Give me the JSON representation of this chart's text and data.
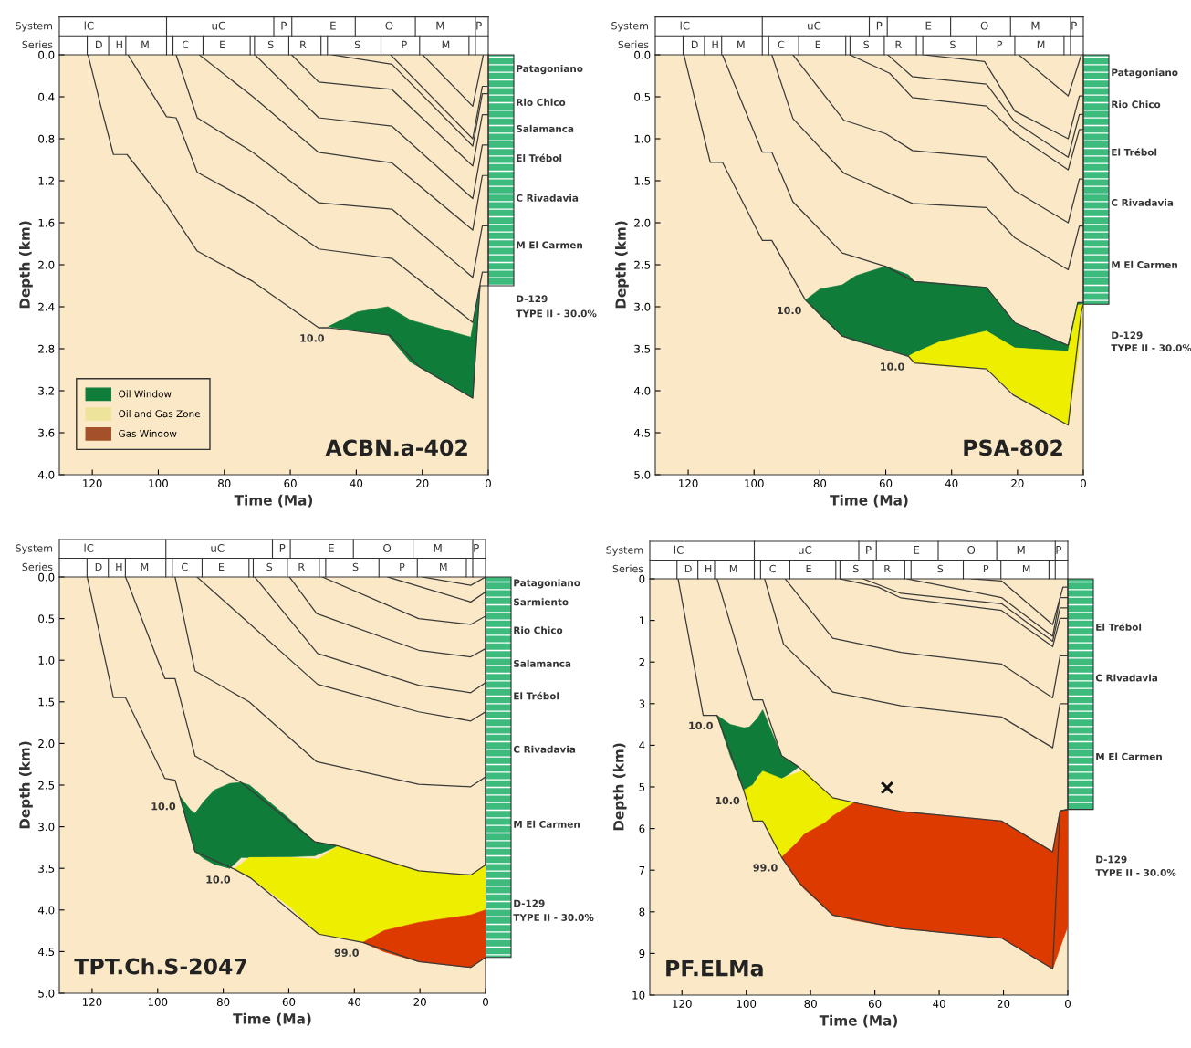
{
  "chart_data": [
    {
      "type": "line",
      "title": "ACBN.a-402",
      "xlabel": "Time (Ma)",
      "ylabel": "Depth (km)",
      "xlim": [
        130,
        0
      ],
      "xticks": [
        120,
        100,
        80,
        60,
        40,
        20,
        0
      ],
      "ylim": [
        4.0,
        0.0
      ],
      "yticks": [
        {
          "value": 0,
          "label": "0.0"
        },
        {
          "value": 0.4,
          "label": "0.4"
        },
        {
          "value": 0.8,
          "label": "0.8"
        },
        {
          "value": 1.2,
          "label": "1.2"
        },
        {
          "value": 1.6,
          "label": "1.6"
        },
        {
          "value": 2.0,
          "label": "2.0"
        },
        {
          "value": 2.4,
          "label": "2.4"
        },
        {
          "value": 2.8,
          "label": "2.8"
        },
        {
          "value": 3.2,
          "label": "3.2"
        },
        {
          "value": 3.6,
          "label": "3.6"
        },
        {
          "value": 4.0,
          "label": "4.0"
        }
      ],
      "grid": false,
      "legend": "bottom left",
      "marker": "none",
      "line_style": "solid",
      "series": [
        {
          "type": "area",
          "name": "Oil Window",
          "color": "#0f7c3a",
          "x": [
            48.5,
            39.7,
            30.4,
            23.4,
            5.3,
            2.5,
            4.7,
            23.4,
            30.4,
            39.7
          ],
          "values": [
            2.59,
            2.45,
            2.4,
            2.53,
            2.69,
            2.2,
            3.27,
            2.93,
            2.67,
            2.63
          ]
        },
        {
          "type": "area",
          "name": "Oil and Gas Zone",
          "color": "#ede39b"
        },
        {
          "type": "area",
          "name": "Gas Window",
          "color": "#a4512b"
        },
        {
          "color": "#3a3a3a",
          "x": [
            121.3,
            117.5,
            113.6,
            109.5,
            97.5,
            88.2,
            71.3,
            51.4,
            48.5,
            29.8,
            21,
            4.7,
            2.5,
            0
          ],
          "values": [
            0,
            0.48,
            0.95,
            0.95,
            1.43,
            1.87,
            2.16,
            2.6,
            2.6,
            2.67,
            2.97,
            3.27,
            2.2,
            2.2
          ]
        },
        {
          "color": "#3a3a3a",
          "x": [
            109.2,
            97.5,
            94.6,
            88.2,
            71.3,
            51.4,
            29.2,
            4.7,
            1.8,
            0
          ],
          "values": [
            0,
            0.59,
            0.6,
            1.12,
            1.41,
            1.85,
            1.94,
            2.55,
            2.07,
            2.07
          ]
        },
        {
          "color": "#3a3a3a",
          "x": [
            94.6,
            88.2,
            71.3,
            51.4,
            29.2,
            4.7,
            1.8,
            0
          ],
          "values": [
            0,
            0.6,
            0.93,
            1.41,
            1.47,
            2.12,
            1.63,
            1.63
          ]
        },
        {
          "color": "#3a3a3a",
          "x": [
            87.6,
            71.3,
            51.4,
            29.2,
            4.7,
            1.8,
            0
          ],
          "values": [
            0,
            0.4,
            0.93,
            1.03,
            1.67,
            1.15,
            1.15
          ]
        },
        {
          "color": "#3a3a3a",
          "x": [
            70.7,
            51.4,
            29.2,
            4.7,
            1.8,
            0
          ],
          "values": [
            0,
            0.6,
            0.68,
            1.37,
            0.86,
            0.86
          ]
        },
        {
          "color": "#3a3a3a",
          "x": [
            59.6,
            51.4,
            29.2,
            4.7,
            1.8,
            0
          ],
          "values": [
            0,
            0.26,
            0.33,
            1.06,
            0.57,
            0.57
          ]
        },
        {
          "color": "#3a3a3a",
          "x": [
            47.3,
            29.2,
            4.7,
            1.8,
            0
          ],
          "values": [
            0,
            0.09,
            0.87,
            0.37,
            0.37
          ]
        },
        {
          "color": "#3a3a3a",
          "x": [
            29.6,
            4.7,
            1.8,
            0
          ],
          "values": [
            0,
            0.8,
            0.3,
            0.3
          ]
        },
        {
          "color": "#3a3a3a",
          "x": [
            19.9,
            4.7,
            1.5
          ],
          "values": [
            0,
            0.49,
            0
          ]
        }
      ],
      "annotations": [
        "System",
        "Series",
        "lC",
        "uC",
        "P",
        "E",
        "O",
        "M",
        "P",
        "D",
        "H",
        "M",
        "C",
        "E",
        "S",
        "R",
        "S",
        "P",
        "M",
        "Patagoniano",
        "Rio Chico",
        "Salamanca",
        "El Trébol",
        "C Rivadavia",
        "M El Carmen",
        "D-129",
        "TYPE II - 30.0%",
        {
          "text": "10.0",
          "x": 48.5,
          "y": 2.6
        }
      ]
    },
    {
      "type": "line",
      "title": "PSA-802",
      "xlabel": "Time (Ma)",
      "ylabel": "Depth (km)",
      "xlim": [
        130,
        0
      ],
      "xticks": [
        120,
        100,
        80,
        60,
        40,
        20,
        0
      ],
      "ylim": [
        5.0,
        0.0
      ],
      "yticks": [
        {
          "value": 0,
          "label": "0.0"
        },
        {
          "value": 0.5,
          "label": "0.5"
        },
        {
          "value": 1.0,
          "label": "1.0"
        },
        {
          "value": 1.5,
          "label": "1.5"
        },
        {
          "value": 2.0,
          "label": "2.0"
        },
        {
          "value": 2.5,
          "label": "2.5"
        },
        {
          "value": 3.0,
          "label": "3.0"
        },
        {
          "value": 3.5,
          "label": "3.5"
        },
        {
          "value": 4.0,
          "label": "4.0"
        },
        {
          "value": 4.5,
          "label": "4.5"
        },
        {
          "value": 5.0,
          "label": "5.0"
        }
      ],
      "grid": false,
      "marker": "none",
      "line_style": "solid",
      "series": [
        {
          "type": "area",
          "color": "#0f7c3a",
          "x": [
            84.4,
            80,
            73.2,
            69,
            60,
            53.1,
            51.3,
            43.8,
            29.4,
            20.8,
            4.6,
            1.7,
            0,
            0,
            1.7,
            4.6,
            20.8,
            29.4,
            43.8,
            51.3,
            53.1,
            60,
            69,
            73.2,
            80
          ],
          "values": [
            2.92,
            2.79,
            2.74,
            2.63,
            2.52,
            2.62,
            2.7,
            2.72,
            2.77,
            3.19,
            3.46,
            2.95,
            2.95,
            2.97,
            2.98,
            3.53,
            3.49,
            3.29,
            3.42,
            3.55,
            3.59,
            3.5,
            3.41,
            3.35,
            3.1
          ]
        },
        {
          "type": "area",
          "color": "#eeee00",
          "x": [
            53.1,
            51.3,
            43.8,
            29.4,
            20.8,
            4.6,
            1.7,
            0,
            1.7,
            4.6,
            20.8,
            29.4,
            43.8,
            51.3
          ],
          "values": [
            3.59,
            3.55,
            3.42,
            3.29,
            3.49,
            3.53,
            2.98,
            2.97,
            3.6,
            4.41,
            4.05,
            3.74,
            3.7,
            3.67
          ]
        },
        {
          "color": "#3a3a3a",
          "x": [
            121.3,
            113.3,
            109.6,
            97.5,
            94.6,
            84.4,
            73.2,
            53.1,
            51.3,
            29.4,
            21.3,
            4.6,
            0.6,
            0
          ],
          "values": [
            0,
            1.28,
            1.28,
            2.21,
            2.21,
            2.92,
            3.35,
            3.59,
            3.67,
            3.74,
            4.05,
            4.41,
            3.06,
            2.97
          ]
        },
        {
          "color": "#3a3a3a",
          "x": [
            109.6,
            97.5,
            94.6,
            88.2,
            73.2,
            60,
            51.3,
            29.4,
            20.8,
            4.6,
            1.7,
            0
          ],
          "values": [
            0,
            1.16,
            1.16,
            1.75,
            2.36,
            2.52,
            2.7,
            2.77,
            3.19,
            3.46,
            2.95,
            2.95
          ]
        },
        {
          "color": "#3a3a3a",
          "x": [
            94.6,
            88.2,
            72.7,
            51.9,
            29.4,
            20.8,
            4.6,
            1.2,
            0
          ],
          "values": [
            0,
            0.76,
            1.41,
            1.77,
            1.82,
            2.18,
            2.56,
            2.04,
            2.04
          ]
        },
        {
          "color": "#3a3a3a",
          "x": [
            88.2,
            72.7,
            60,
            51.9,
            29.4,
            20.8,
            4.6,
            1.2,
            0
          ],
          "values": [
            0,
            0.78,
            0.94,
            1.14,
            1.22,
            1.62,
            2.0,
            1.48,
            1.48
          ]
        },
        {
          "color": "#3a3a3a",
          "x": [
            70.9,
            58.8,
            51.9,
            29.4,
            20.8,
            4.6,
            1.2,
            0
          ],
          "values": [
            0,
            0.22,
            0.51,
            0.61,
            0.94,
            1.37,
            0.89,
            0.89
          ]
        },
        {
          "color": "#3a3a3a",
          "x": [
            59.4,
            51.9,
            29.4,
            20.8,
            4.6,
            1.2,
            0
          ],
          "values": [
            0,
            0.26,
            0.35,
            0.8,
            1.22,
            0.71,
            0.71
          ]
        },
        {
          "color": "#3a3a3a",
          "x": [
            48.4,
            30,
            20.8,
            4.6,
            1.2,
            0
          ],
          "values": [
            0,
            0.08,
            0.67,
            1.0,
            0.49,
            0.49
          ]
        },
        {
          "color": "#3a3a3a",
          "x": [
            19.6,
            4.6,
            0.6
          ],
          "values": [
            0,
            0.49,
            0
          ]
        }
      ],
      "annotations": [
        "System",
        "Series",
        "lC",
        "uC",
        "P",
        "E",
        "O",
        "M",
        "P",
        "D",
        "H",
        "M",
        "C",
        "E",
        "S",
        "R",
        "S",
        "P",
        "M",
        "Patagoniano",
        "Rio Chico",
        "El Trébol",
        "C Rivadavia",
        "M El Carmen",
        "D-129",
        "TYPE II - 30.0%",
        {
          "text": "10.0",
          "x": 84.4,
          "y": 2.92
        },
        {
          "text": "10.0",
          "x": 53.1,
          "y": 3.59
        }
      ]
    },
    {
      "type": "line",
      "title": "TPT.Ch.S-2047",
      "xlabel": "Time (Ma)",
      "ylabel": "Depth (km)",
      "xlim": [
        130,
        0
      ],
      "xticks": [
        120,
        100,
        80,
        60,
        40,
        20,
        0
      ],
      "ylim": [
        5.0,
        0.0
      ],
      "yticks": [
        {
          "value": 0,
          "label": "0.0"
        },
        {
          "value": 0.5,
          "label": "0.5"
        },
        {
          "value": 1.0,
          "label": "1.0"
        },
        {
          "value": 1.5,
          "label": "1.5"
        },
        {
          "value": 2.0,
          "label": "2.0"
        },
        {
          "value": 2.5,
          "label": "2.5"
        },
        {
          "value": 3.0,
          "label": "3.0"
        },
        {
          "value": 3.5,
          "label": "3.5"
        },
        {
          "value": 4.0,
          "label": "4.0"
        },
        {
          "value": 4.5,
          "label": "4.5"
        },
        {
          "value": 5.0,
          "label": "5.0"
        }
      ],
      "grid": false,
      "marker": "none",
      "line_style": "solid",
      "series": [
        {
          "type": "area",
          "color": "#0f7c3a",
          "x": [
            93.3,
            90,
            88.6,
            86,
            82.7,
            78,
            74.5,
            72,
            60,
            52.1,
            45,
            52.1,
            60,
            72,
            74.5,
            78,
            82.7,
            86,
            88.6,
            90
          ],
          "values": [
            2.63,
            2.8,
            2.84,
            2.7,
            2.56,
            2.48,
            2.47,
            2.5,
            2.9,
            3.18,
            3.23,
            3.35,
            3.36,
            3.37,
            3.37,
            3.5,
            3.45,
            3.38,
            3.3,
            3.1
          ]
        },
        {
          "type": "area",
          "color": "#eeee00",
          "x": [
            76.6,
            72.1,
            71.5,
            60,
            51,
            45,
            37.4,
            31,
            20.4,
            4.5,
            0,
            0,
            4.5,
            20.4,
            31,
            37.4,
            45,
            51,
            60,
            71.5,
            72.1
          ],
          "values": [
            3.51,
            3.37,
            3.37,
            3.37,
            3.39,
            3.23,
            3.33,
            3.4,
            3.53,
            3.58,
            3.46,
            4.0,
            4.06,
            4.15,
            4.25,
            4.39,
            4.33,
            4.29,
            3.95,
            3.62,
            3.6
          ]
        },
        {
          "type": "area",
          "color": "#dd3a00",
          "x": [
            37.4,
            31,
            20.4,
            4.5,
            0,
            0,
            4.5,
            20.4,
            31
          ],
          "values": [
            4.39,
            4.25,
            4.15,
            4.06,
            4.0,
            4.57,
            4.69,
            4.62,
            4.5
          ]
        },
        {
          "color": "#3a3a3a",
          "x": [
            121.5,
            113.5,
            109.8,
            97.8,
            94.7,
            93.3,
            88.6,
            76.6,
            71.5,
            50.9,
            37.4,
            20.4,
            4.5,
            0
          ],
          "values": [
            0,
            1.45,
            1.45,
            2.42,
            2.44,
            2.63,
            3.3,
            3.51,
            3.62,
            4.29,
            4.39,
            4.62,
            4.69,
            4.57
          ]
        },
        {
          "color": "#3a3a3a",
          "x": [
            109.8,
            97.8,
            94.7,
            88.6,
            74.5,
            52.1,
            45,
            20.4,
            4.5,
            0
          ],
          "values": [
            0,
            1.22,
            1.22,
            2.15,
            2.47,
            3.18,
            3.23,
            3.53,
            3.58,
            3.46
          ]
        },
        {
          "color": "#3a3a3a",
          "x": [
            94.7,
            88.6,
            72.1,
            51.5,
            20.4,
            4.5,
            0
          ],
          "values": [
            0,
            1.13,
            1.5,
            2.22,
            2.49,
            2.52,
            2.4
          ]
        },
        {
          "color": "#3a3a3a",
          "x": [
            88,
            51.2,
            20.4,
            4.5,
            0
          ],
          "values": [
            0,
            1.29,
            1.62,
            1.73,
            1.62
          ]
        },
        {
          "color": "#3a3a3a",
          "x": [
            70.4,
            51.2,
            20.4,
            4.5,
            0
          ],
          "values": [
            0,
            0.92,
            1.3,
            1.39,
            1.27
          ]
        },
        {
          "color": "#3a3a3a",
          "x": [
            59.8,
            51.5,
            20.4,
            4.5,
            0
          ],
          "values": [
            0,
            0.44,
            0.88,
            0.96,
            0.86
          ]
        },
        {
          "color": "#3a3a3a",
          "x": [
            49.8,
            20.4,
            4.5,
            0
          ],
          "values": [
            0,
            0.5,
            0.57,
            0.47
          ]
        },
        {
          "color": "#3a3a3a",
          "x": [
            29.8,
            4.5,
            0
          ],
          "values": [
            0,
            0.3,
            0.18
          ]
        },
        {
          "color": "#3a3a3a",
          "x": [
            19.2,
            4.5,
            0
          ],
          "values": [
            0,
            0.1,
            0
          ]
        }
      ],
      "annotations": [
        "System",
        "Series",
        "lC",
        "uC",
        "P",
        "E",
        "O",
        "M",
        "P",
        "D",
        "H",
        "M",
        "C",
        "E",
        "S",
        "R",
        "S",
        "P",
        "M",
        "Patagoniano",
        "Sarmiento",
        "Rio Chico",
        "Salamanca",
        "El Trébol",
        "C Rivadavia",
        "M El Carmen",
        "D-129",
        "TYPE II - 30.0%",
        {
          "text": "10.0",
          "x": 93.3,
          "y": 2.63
        },
        {
          "text": "10.0",
          "x": 76.6,
          "y": 3.51
        },
        {
          "text": "99.0",
          "x": 37.4,
          "y": 4.39
        }
      ]
    },
    {
      "type": "line",
      "title": "PF.ELMa",
      "xlabel": "Time (Ma)",
      "ylabel": "Depth (km)",
      "xlim": [
        130,
        0
      ],
      "xticks": [
        120,
        100,
        80,
        60,
        40,
        20,
        0
      ],
      "ylim": [
        10,
        0
      ],
      "yticks": [
        0,
        1,
        2,
        3,
        4,
        5,
        6,
        7,
        8,
        9,
        10
      ],
      "grid": false,
      "marker": "none",
      "line_style": "solid",
      "series": [
        {
          "type": "area",
          "color": "#0f7c3a",
          "x": [
            109.1,
            105,
            100.8,
            99,
            96.5,
            94.9,
            92,
            89,
            86,
            83.7,
            86,
            89,
            92,
            94.9,
            96.5,
            99,
            100.8,
            105
          ],
          "values": [
            3.28,
            3.5,
            3.58,
            3.56,
            3.35,
            3.15,
            3.7,
            4.25,
            4.4,
            4.52,
            4.65,
            4.8,
            4.72,
            4.62,
            4.75,
            5.08,
            5.08,
            4.25
          ]
        },
        {
          "type": "area",
          "color": "#eeee00",
          "x": [
            100.8,
            97.9,
            94.9,
            89,
            82,
            75.5,
            73.1,
            66.5,
            73.1,
            75.5,
            82,
            89,
            94.9,
            97.9
          ],
          "values": [
            5.08,
            4.95,
            4.62,
            4.8,
            4.6,
            5.1,
            5.26,
            5.38,
            5.7,
            5.86,
            6.14,
            6.69,
            5.82,
            5.82
          ]
        },
        {
          "type": "area",
          "color": "#dd3a00",
          "x": [
            89,
            83.7,
            82,
            75.5,
            73.1,
            66.5,
            51.9,
            20.6,
            4.7,
            2.4,
            0,
            0,
            2.4,
            4.7,
            20.6,
            51.9,
            66.5,
            73.1,
            75.5,
            82,
            83.7
          ],
          "values": [
            6.69,
            6.3,
            6.14,
            5.86,
            5.7,
            5.38,
            5.59,
            5.82,
            6.56,
            5.58,
            5.54,
            8.35,
            8.86,
            9.37,
            8.63,
            8.4,
            8.2,
            8.08,
            7.9,
            7.45,
            7.29
          ]
        },
        {
          "color": "#3a3a3a",
          "x": [
            121.2,
            113.4,
            109.1,
            100.8,
            97.9,
            94.9,
            89,
            83.7,
            73.1,
            51.9,
            20.6,
            4.7,
            2.4,
            0
          ],
          "values": [
            0,
            3.28,
            3.28,
            5.08,
            5.82,
            5.82,
            6.69,
            7.29,
            8.08,
            8.4,
            8.63,
            9.37,
            5.58,
            5.54
          ]
        },
        {
          "color": "#3a3a3a",
          "x": [
            109.1,
            97.9,
            94.9,
            93.7,
            89,
            83.7,
            73.1,
            64.9,
            51.9,
            20.6,
            4.7,
            2.4,
            0
          ],
          "values": [
            0,
            2.91,
            2.91,
            3.19,
            4.25,
            4.52,
            5.26,
            5.4,
            5.59,
            5.82,
            6.56,
            5.58,
            5.54
          ]
        },
        {
          "color": "#3a3a3a",
          "x": [
            94.3,
            88.4,
            73.1,
            51.9,
            20.6,
            4.7,
            2.4,
            0
          ],
          "values": [
            0,
            1.57,
            2.72,
            3.05,
            3.32,
            4.06,
            3.0,
            3.0
          ]
        },
        {
          "color": "#3a3a3a",
          "x": [
            87.9,
            73.1,
            51.9,
            20.6,
            4.7,
            2.4,
            0
          ],
          "values": [
            0,
            1.43,
            1.77,
            2.05,
            2.86,
            1.85,
            1.85
          ]
        },
        {
          "color": "#3a3a3a",
          "x": [
            70.8,
            59,
            51.9,
            20.6,
            4.7,
            2.4,
            0
          ],
          "values": [
            0,
            0.2,
            0.46,
            0.76,
            1.63,
            0.95,
            0.95
          ]
        },
        {
          "color": "#3a3a3a",
          "x": [
            63.7,
            51.9,
            20.6,
            4.7,
            2.4,
            0
          ],
          "values": [
            0,
            0.35,
            0.6,
            1.5,
            0.7,
            0.7
          ]
        },
        {
          "color": "#3a3a3a",
          "x": [
            50,
            20.6,
            4.7,
            2.4,
            0
          ],
          "values": [
            0,
            0.45,
            1.38,
            0.45,
            0.45
          ]
        },
        {
          "color": "#3a3a3a",
          "x": [
            30,
            20.6,
            4.7,
            1.5,
            0
          ],
          "values": [
            0,
            0.05,
            1.1,
            0.2,
            0.2
          ]
        },
        {
          "type": "scatter",
          "color": "#111111",
          "marker": "cross",
          "x": [
            56.2
          ],
          "values": [
            5.02
          ]
        }
      ],
      "annotations": [
        "System",
        "Series",
        "lC",
        "uC",
        "P",
        "E",
        "O",
        "M",
        "P",
        "D",
        "H",
        "M",
        "C",
        "E",
        "S",
        "R",
        "S",
        "P",
        "M",
        "El Trébol",
        "C Rivadavia",
        "M El Carmen",
        "D-129",
        "TYPE II - 30.0%",
        {
          "text": "10.0",
          "x": 109.1,
          "y": 3.28
        },
        {
          "text": "10.0",
          "x": 100.8,
          "y": 5.08
        },
        {
          "text": "99.0",
          "x": 89,
          "y": 6.69
        }
      ]
    }
  ]
}
